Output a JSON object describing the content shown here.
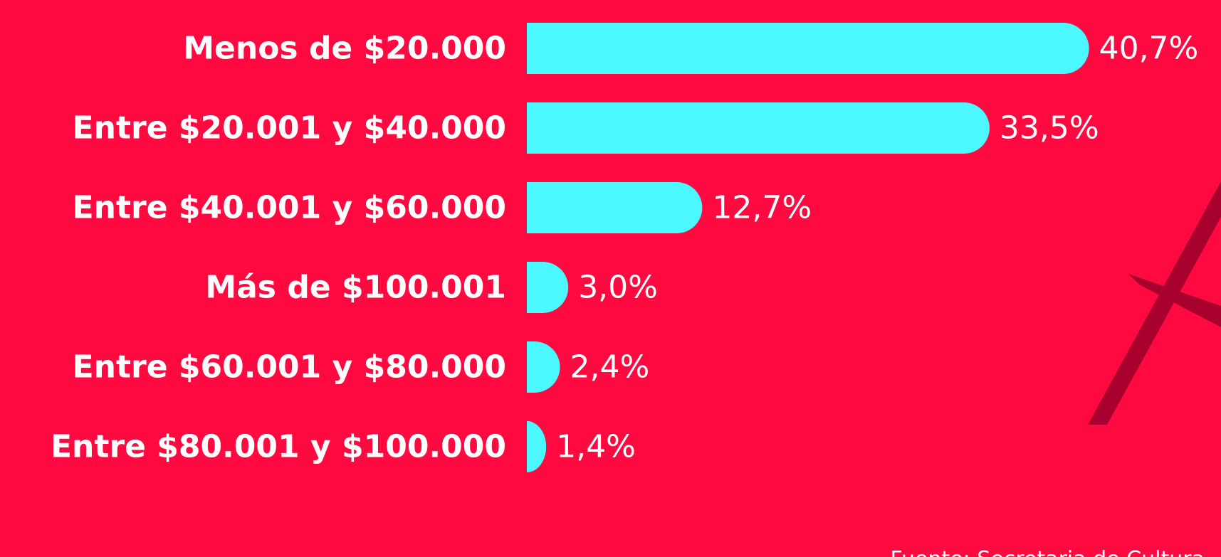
{
  "chart_data": {
    "type": "bar",
    "orientation": "horizontal",
    "categories": [
      "Menos de $20.000",
      "Entre $20.001 y $40.000",
      "Entre $40.001 y $60.000",
      "Más de $100.001",
      "Entre $60.001 y $80.000",
      "Entre $80.001 y $100.000"
    ],
    "values": [
      40.7,
      33.5,
      12.7,
      3.0,
      2.4,
      1.4
    ],
    "value_labels": [
      "40,7%",
      "33,5%",
      "12,7%",
      "3,0%",
      "2,4%",
      "1,4%"
    ],
    "color": "#4cf8ff",
    "source": "Fuente: Secretaria de Cultura"
  }
}
